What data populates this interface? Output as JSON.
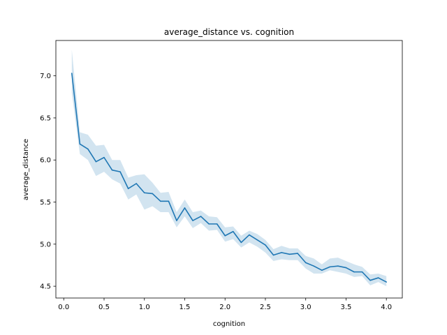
{
  "chart_data": {
    "type": "line",
    "title": "average_distance vs. cognition",
    "xlabel": "cognition",
    "ylabel": "average_distance",
    "xlim": [
      -0.0975,
      4.1975
    ],
    "ylim": [
      4.36,
      7.42
    ],
    "xticks": [
      0.0,
      0.5,
      1.0,
      1.5,
      2.0,
      2.5,
      3.0,
      3.5,
      4.0
    ],
    "xtick_labels": [
      "0.0",
      "0.5",
      "1.0",
      "1.5",
      "2.0",
      "2.5",
      "3.0",
      "3.5",
      "4.0"
    ],
    "yticks": [
      4.5,
      5.0,
      5.5,
      6.0,
      6.5,
      7.0
    ],
    "ytick_labels": [
      "4.5",
      "5.0",
      "5.5",
      "6.0",
      "6.5",
      "7.0"
    ],
    "grid": false,
    "series": [
      {
        "color": "#1f77b4",
        "band_color": "#1f77b4",
        "x": [
          0.1,
          0.2,
          0.3,
          0.4,
          0.5,
          0.6,
          0.7,
          0.8,
          0.9,
          1.0,
          1.1,
          1.2,
          1.3,
          1.4,
          1.5,
          1.6,
          1.7,
          1.8,
          1.9,
          2.0,
          2.1,
          2.2,
          2.3,
          2.4,
          2.5,
          2.6,
          2.7,
          2.8,
          2.9,
          3.0,
          3.1,
          3.2,
          3.3,
          3.4,
          3.5,
          3.6,
          3.7,
          3.8,
          3.9,
          4.0
        ],
        "y": [
          7.03,
          6.19,
          6.13,
          5.98,
          6.03,
          5.88,
          5.86,
          5.66,
          5.72,
          5.61,
          5.6,
          5.51,
          5.51,
          5.28,
          5.43,
          5.28,
          5.33,
          5.24,
          5.24,
          5.1,
          5.15,
          5.02,
          5.11,
          5.05,
          4.99,
          4.87,
          4.9,
          4.88,
          4.89,
          4.78,
          4.74,
          4.69,
          4.73,
          4.74,
          4.72,
          4.67,
          4.67,
          4.57,
          4.6,
          4.55
        ],
        "y_lower": [
          6.8,
          6.07,
          6.0,
          5.81,
          5.86,
          5.77,
          5.72,
          5.53,
          5.59,
          5.41,
          5.45,
          5.38,
          5.38,
          5.2,
          5.33,
          5.19,
          5.25,
          5.16,
          5.17,
          5.03,
          5.06,
          4.96,
          5.02,
          4.97,
          4.9,
          4.8,
          4.82,
          4.81,
          4.81,
          4.71,
          4.65,
          4.65,
          4.69,
          4.67,
          4.65,
          4.61,
          4.62,
          4.51,
          4.55,
          4.5
        ],
        "y_upper": [
          7.31,
          6.33,
          6.3,
          6.17,
          6.18,
          6.0,
          6.0,
          5.79,
          5.82,
          5.83,
          5.73,
          5.61,
          5.62,
          5.38,
          5.53,
          5.38,
          5.4,
          5.33,
          5.32,
          5.2,
          5.21,
          5.1,
          5.16,
          5.12,
          5.05,
          4.94,
          4.98,
          4.95,
          4.95,
          4.86,
          4.83,
          4.76,
          4.83,
          4.84,
          4.8,
          4.76,
          4.73,
          4.64,
          4.65,
          4.62
        ]
      }
    ]
  }
}
